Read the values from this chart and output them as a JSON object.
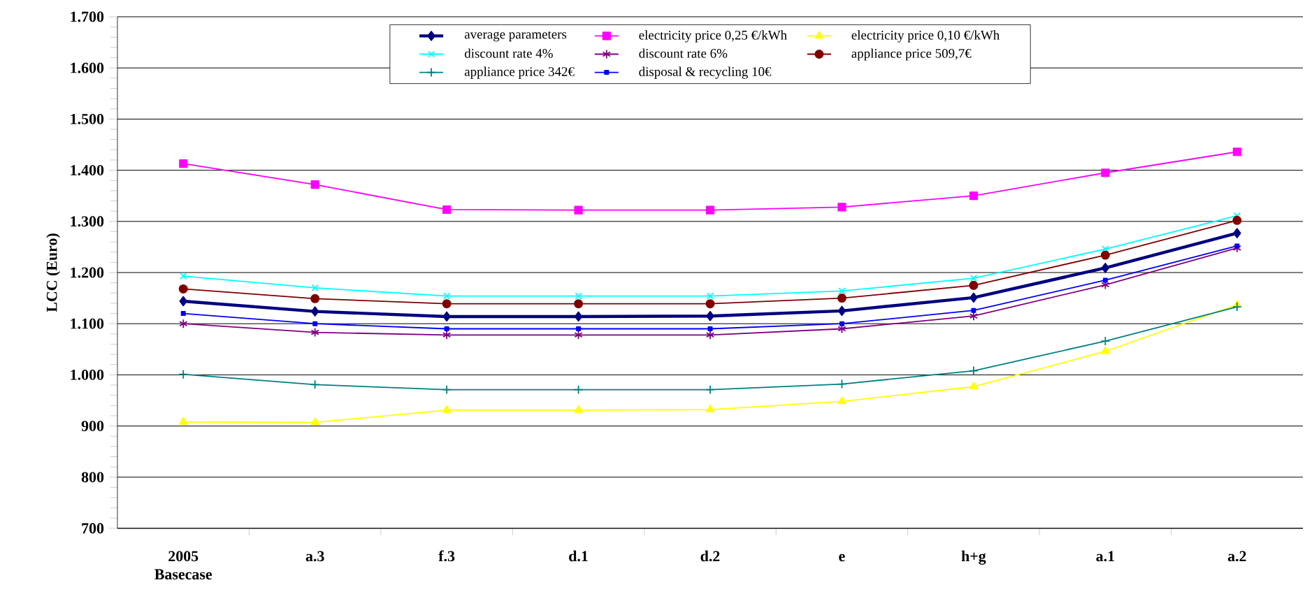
{
  "chart_data": {
    "type": "line",
    "ylabel": "LCC (Euro)",
    "categories": [
      "2005 Basecase",
      "a.3",
      "f.3",
      "d.1",
      "d.2",
      "e",
      "h+g",
      "a.1",
      "a.2"
    ],
    "ylim": [
      700,
      1700
    ],
    "yticks": [
      {
        "value": 700,
        "label": "700"
      },
      {
        "value": 800,
        "label": "800"
      },
      {
        "value": 900,
        "label": "900"
      },
      {
        "value": 1000,
        "label": "1.000"
      },
      {
        "value": 1100,
        "label": "1.100"
      },
      {
        "value": 1200,
        "label": "1.200"
      },
      {
        "value": 1300,
        "label": "1.300"
      },
      {
        "value": 1400,
        "label": "1.400"
      },
      {
        "value": 1500,
        "label": "1.500"
      },
      {
        "value": 1600,
        "label": "1.600"
      },
      {
        "value": 1700,
        "label": "1.700"
      }
    ],
    "grid": "y",
    "legend": "top",
    "line_style": "solid",
    "series": [
      {
        "name": "average parameters",
        "color": "#000080",
        "marker": "diamond",
        "values": [
          1144,
          1124,
          1114,
          1114,
          1115,
          1125,
          1151,
          1209,
          1277
        ]
      },
      {
        "name": "electricity price 0,25 €/kWh",
        "color": "#ff00ff",
        "marker": "square",
        "values": [
          1413,
          1372,
          1323,
          1322,
          1322,
          1328,
          1350,
          1395,
          1436
        ]
      },
      {
        "name": "electricity price 0,10 €/kWh",
        "color": "#ffff00",
        "marker": "triangle",
        "values": [
          908,
          907,
          931,
          931,
          932,
          948,
          977,
          1046,
          1137
        ]
      },
      {
        "name": "discount rate 4%",
        "color": "#00ffff",
        "marker": "cross",
        "values": [
          1193,
          1170,
          1154,
          1154,
          1154,
          1164,
          1189,
          1246,
          1311
        ]
      },
      {
        "name": "discount rate 6%",
        "color": "#800080",
        "marker": "cross",
        "values": [
          1100,
          1083,
          1078,
          1078,
          1078,
          1090,
          1115,
          1176,
          1248
        ]
      },
      {
        "name": "appliance price 509,7€",
        "color": "#800000",
        "marker": "circle",
        "values": [
          1168,
          1149,
          1139,
          1139,
          1139,
          1150,
          1175,
          1234,
          1302
        ]
      },
      {
        "name": "appliance price 342€",
        "color": "#008080",
        "marker": "plus",
        "values": [
          1001,
          981,
          971,
          971,
          971,
          982,
          1008,
          1066,
          1133
        ]
      },
      {
        "name": "disposal & recycling 10€",
        "color": "#0000ff",
        "marker": "square",
        "values": [
          1120,
          1100,
          1090,
          1090,
          1090,
          1100,
          1126,
          1185,
          1252
        ]
      }
    ]
  }
}
